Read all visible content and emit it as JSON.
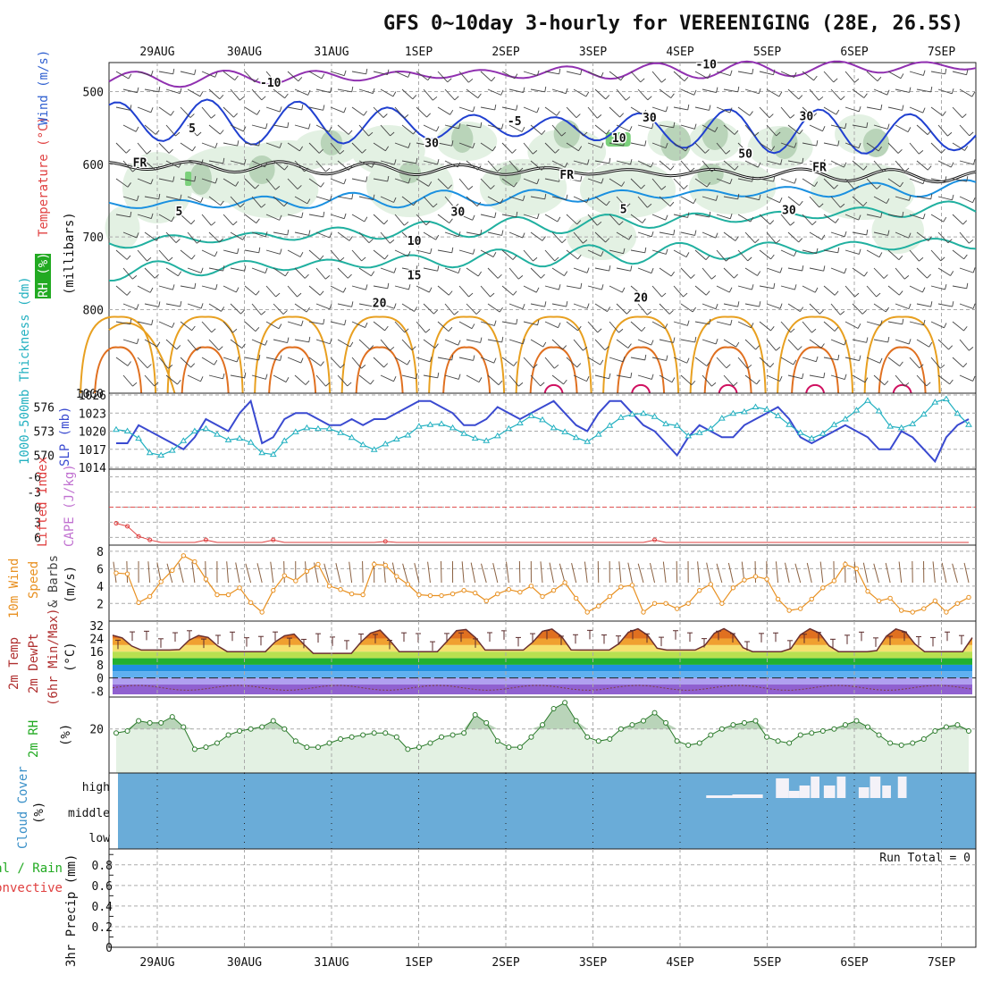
{
  "title": "GFS 0~10day 3-hourly for VEREENIGING (28E, 26.5S)",
  "colors": {
    "wind": "#3a3a3a",
    "temperature": "#e04040",
    "rh": "#22aa22",
    "thickness": "#22b0c0",
    "slp": "#3a4ad0",
    "lifted": "#e04040",
    "cape": "#c070d0",
    "windspeed": "#e89020",
    "cloud": "#6aacd8",
    "precip_rain": "#22aa22",
    "precip_conv": "#e04040"
  },
  "chart_data": {
    "type": "meteogram",
    "dates": [
      "29AUG",
      "30AUG",
      "31AUG",
      "1SEP",
      "2SEP",
      "3SEP",
      "4SEP",
      "5SEP",
      "6SEP",
      "7SEP"
    ],
    "upper_air": {
      "ylabel_parts": [
        "Temperature (°C)",
        "Wind (m/s)",
        "(millibars)"
      ],
      "rh_label": "RH (%)",
      "pressure_ticks": [
        "500",
        "600",
        "700",
        "800",
        "1000"
      ],
      "contour_labels": [
        {
          "text": "-10",
          "pressure": 487,
          "day": 1.3,
          "color": "#9030b0"
        },
        {
          "text": "-10",
          "pressure": 462,
          "day": 6.3,
          "color": "#9030b0"
        },
        {
          "text": "5",
          "pressure": 550,
          "day": 0.4,
          "color": "#2040d0"
        },
        {
          "text": "-5",
          "pressure": 540,
          "day": 4.1,
          "color": "#2040d0"
        },
        {
          "text": "FR",
          "pressure": 597,
          "day": -0.2,
          "color": "#111111"
        },
        {
          "text": "FR",
          "pressure": 614,
          "day": 4.7,
          "color": "#111111"
        },
        {
          "text": "FR",
          "pressure": 603,
          "day": 7.6,
          "color": "#111111"
        },
        {
          "text": "5",
          "pressure": 664,
          "day": 0.25,
          "color": "#1a90e0"
        },
        {
          "text": "5",
          "pressure": 661,
          "day": 5.35,
          "color": "#1a90e0"
        },
        {
          "text": "10",
          "pressure": 705,
          "day": 2.95,
          "color": "#20b0a0"
        },
        {
          "text": "15",
          "pressure": 752,
          "day": 2.95,
          "color": "#20b0a0"
        },
        {
          "text": "20",
          "pressure": 790,
          "day": 2.55,
          "color": "#e8a020"
        },
        {
          "text": "20",
          "pressure": 783,
          "day": 5.55,
          "color": "#e8a020"
        },
        {
          "text": "30",
          "pressure": 535,
          "day": 5.65,
          "color": "#888888"
        },
        {
          "text": "30",
          "pressure": 533,
          "day": 7.45,
          "color": "#888888"
        },
        {
          "text": "30",
          "pressure": 570,
          "day": 3.15,
          "color": "#888888"
        },
        {
          "text": "10",
          "pressure": 563,
          "day": 5.3,
          "color": "#888888"
        },
        {
          "text": "50",
          "pressure": 585,
          "day": 6.75,
          "color": "#888888"
        },
        {
          "text": "30",
          "pressure": 665,
          "day": 3.45,
          "color": "#888888"
        },
        {
          "text": "30",
          "pressure": 662,
          "day": 7.25,
          "color": "#888888"
        }
      ],
      "isotherms": [
        {
          "name": "-10",
          "color": "#9030b0",
          "base": 483,
          "amp": 8,
          "trend": -0.5
        },
        {
          "name": "-5",
          "color": "#2040d0",
          "base": 540,
          "amp": 22,
          "trend": 0.5
        },
        {
          "name": "FR",
          "color": "#111111",
          "base": 602,
          "amp": 6,
          "trend": 0.4
        },
        {
          "name": "5",
          "color": "#1a90e0",
          "base": 655,
          "amp": 8,
          "trend": -0.6
        },
        {
          "name": "10",
          "color": "#20b0a0",
          "base": 705,
          "amp": 9,
          "trend": -1.2
        },
        {
          "name": "15",
          "color": "#20b0a0",
          "base": 745,
          "amp": 10,
          "trend": -1.0
        }
      ]
    },
    "thickness_slp": {
      "label_thickness": "1000-500mb Thickness (dm)",
      "label_slp": "SLP (mb)",
      "thickness_ticks": [
        576,
        573,
        570
      ],
      "slp_ticks": [
        1026,
        1023,
        1020,
        1017,
        1014
      ],
      "slp": [
        1018,
        1018,
        1021,
        1020,
        1019,
        1018,
        1017,
        1019,
        1022,
        1021,
        1020,
        1023,
        1025,
        1018,
        1019,
        1022,
        1023,
        1023,
        1022,
        1021,
        1021,
        1022,
        1021,
        1022,
        1022,
        1023,
        1024,
        1025,
        1025,
        1024,
        1023,
        1021,
        1021,
        1022,
        1024,
        1023,
        1022,
        1023,
        1024,
        1025,
        1023,
        1021,
        1020,
        1023,
        1025,
        1025,
        1023,
        1021,
        1020,
        1018,
        1016,
        1019,
        1021,
        1020,
        1019,
        1019,
        1021,
        1022,
        1023,
        1024,
        1022,
        1019,
        1018,
        1019,
        1020,
        1021,
        1020,
        1019,
        1017,
        1017,
        1020,
        1019,
        1017,
        1015,
        1019,
        1021,
        1022
      ],
      "thickness": [
        573.2,
        573.0,
        572.1,
        570.3,
        570.0,
        570.6,
        571.8,
        573.0,
        573.3,
        572.6,
        571.9,
        572.1,
        571.6,
        570.3,
        570.1,
        571.8,
        572.9,
        573.4,
        573.3,
        573.3,
        572.8,
        572.2,
        571.3,
        570.7,
        571.4,
        572.0,
        572.5,
        573.6,
        573.8,
        573.9,
        573.4,
        572.7,
        572.1,
        571.8,
        572.4,
        573.3,
        574.0,
        574.9,
        574.4,
        573.4,
        572.9,
        572.2,
        571.7,
        572.6,
        573.7,
        574.7,
        575.1,
        575.2,
        574.8,
        573.9,
        573.7,
        572.4,
        572.8,
        573.3,
        574.6,
        575.2,
        575.4,
        576.0,
        575.7,
        574.9,
        573.8,
        572.8,
        572.1,
        572.7,
        573.8,
        574.5,
        575.6,
        576.8,
        575.5,
        573.6,
        573.4,
        573.9,
        575.1,
        576.6,
        577.0,
        575.2,
        573.8
      ]
    },
    "lifted_cape": {
      "label_li": "Lifted Index",
      "label_cape": "CAPE (J/kg)",
      "ticks": [
        "-6",
        "-3",
        "0",
        "3",
        "6"
      ],
      "lifted": [
        3.2,
        3.8,
        5.8,
        6.5,
        7,
        7,
        7,
        7,
        6.5,
        7,
        7,
        7,
        7,
        7,
        6.5,
        7,
        7,
        7,
        7,
        7,
        7,
        7,
        7,
        7,
        6.8,
        7,
        7,
        7,
        7,
        7,
        7,
        7,
        7,
        7,
        7,
        7,
        7,
        7,
        7,
        7,
        7,
        7,
        7,
        7,
        7,
        7,
        7,
        7,
        6.5,
        7,
        7,
        7,
        7,
        7,
        7,
        7,
        7,
        7,
        7,
        7,
        7,
        7,
        7,
        7,
        7,
        7,
        7,
        7,
        7,
        7,
        7,
        7,
        7,
        7,
        7,
        7,
        7
      ]
    },
    "wind10m": {
      "label_a": "10m Wind",
      "label_b": "Speed",
      "label_c": "& Barbs",
      "unit": "(m/s)",
      "ticks": [
        "8",
        "6",
        "4",
        "2"
      ],
      "speed": [
        5.5,
        5.4,
        2.1,
        2.8,
        4.5,
        5.8,
        7.5,
        6.8,
        4.8,
        3.0,
        3.0,
        3.8,
        2.1,
        1.0,
        3.5,
        5.2,
        4.6,
        5.7,
        6.5,
        4.0,
        3.6,
        3.1,
        3.0,
        6.5,
        6.4,
        5.1,
        4.2,
        3.0,
        2.9,
        2.9,
        3.1,
        3.5,
        3.2,
        2.3,
        3.1,
        3.6,
        3.3,
        4.0,
        2.8,
        3.5,
        4.4,
        2.6,
        1.0,
        1.7,
        2.8,
        3.9,
        4.1,
        1.0,
        2.0,
        2.0,
        1.4,
        2.0,
        3.5,
        4.2,
        2.0,
        3.8,
        4.7,
        5.1,
        4.8,
        2.5,
        1.2,
        1.4,
        2.5,
        3.8,
        4.6,
        6.5,
        6.0,
        3.4,
        2.3,
        2.6,
        1.2,
        1.0,
        1.4,
        2.3,
        1.0,
        2.0,
        2.7
      ]
    },
    "temp2m": {
      "label_a": "2m Temp",
      "label_b": "2m DewPt",
      "label_c": "(6hr Min/Max)",
      "unit": "(°C)",
      "ticks": [
        "32",
        "24",
        "16",
        "8",
        "0",
        "-8"
      ],
      "temp_tmax": [
        26,
        26,
        28,
        30,
        30,
        30,
        30,
        30,
        30
      ],
      "temp_tmin": [
        17,
        16,
        15,
        16,
        17,
        17,
        17,
        16,
        16
      ],
      "dew_base": -6
    },
    "rh2m": {
      "label": "2m RH",
      "unit": "(%)",
      "ticks": [
        "20"
      ],
      "values": [
        18,
        19,
        24,
        23,
        23,
        26,
        21,
        10,
        11,
        13,
        17,
        19,
        20,
        21,
        24,
        20,
        14,
        11,
        11,
        13,
        15,
        16,
        17,
        18,
        18,
        16,
        10,
        11,
        13,
        16,
        17,
        18,
        27,
        23,
        14,
        11,
        11,
        16,
        22,
        30,
        33,
        24,
        16,
        14,
        15,
        20,
        22,
        24,
        28,
        23,
        14,
        12,
        13,
        17,
        20,
        22,
        23,
        24,
        16,
        14,
        13,
        17,
        18,
        19,
        20,
        22,
        24,
        21,
        17,
        13,
        12,
        13,
        15,
        19,
        21,
        22,
        19
      ]
    },
    "cloud": {
      "label": "Cloud Cover",
      "unit": "(%)",
      "levels": [
        "high",
        "middle",
        "low"
      ],
      "high_blocks": [
        {
          "day": 6.8,
          "width": 0.35,
          "height": 3
        },
        {
          "day": 7.1,
          "width": 0.35,
          "height": 4
        },
        {
          "day": 7.6,
          "width": 0.15,
          "height": 22
        },
        {
          "day": 7.75,
          "width": 0.12,
          "height": 8
        },
        {
          "day": 7.87,
          "width": 0.12,
          "height": 14
        },
        {
          "day": 8.0,
          "width": 0.1,
          "height": 24
        },
        {
          "day": 8.15,
          "width": 0.13,
          "height": 14
        },
        {
          "day": 8.3,
          "width": 0.1,
          "height": 24
        },
        {
          "day": 8.55,
          "width": 0.12,
          "height": 12
        },
        {
          "day": 8.68,
          "width": 0.12,
          "height": 24
        },
        {
          "day": 8.82,
          "width": 0.1,
          "height": 14
        },
        {
          "day": 9.0,
          "width": 0.1,
          "height": 24
        }
      ]
    },
    "precip": {
      "label_a": "3hr Precip (mm)",
      "legend_a": "Total / Rain",
      "legend_b": "Convective",
      "ticks": [
        "0.8",
        "0.6",
        "0.4",
        "0.2",
        "0"
      ],
      "run_total": "Run Total = 0"
    }
  }
}
